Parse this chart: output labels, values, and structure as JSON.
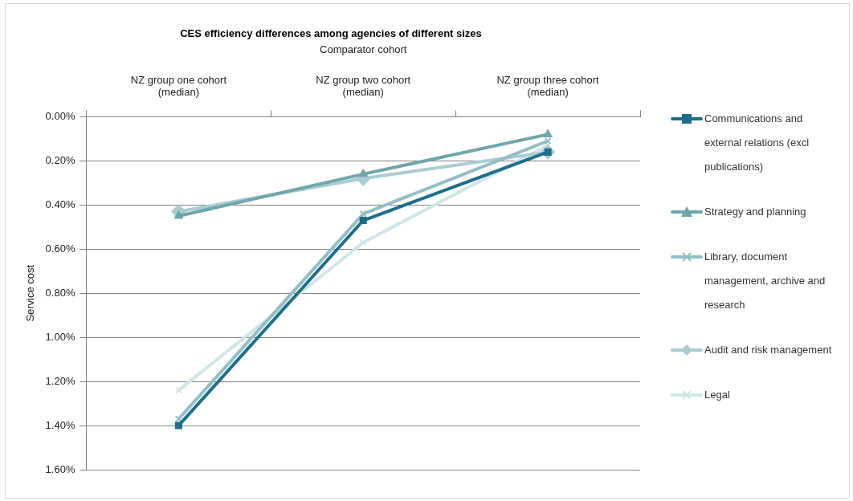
{
  "chart_data": {
    "type": "line",
    "title": "CES efficiency differences among agencies of different sizes",
    "xlabel": "Comparator cohort",
    "ylabel": "Service cost",
    "categories": [
      "NZ group one cohort (median)",
      "NZ group two cohort (median)",
      "NZ group three cohort (median)"
    ],
    "series": [
      {
        "name": "Communications and external relations (excl publications)",
        "color": "#1f6e87",
        "marker": "square",
        "values": [
          1.4,
          0.47,
          0.16
        ]
      },
      {
        "name": "Strategy and planning",
        "color": "#6fa5ab",
        "marker": "triangle",
        "values": [
          0.45,
          0.26,
          0.08
        ]
      },
      {
        "name": "Library, document management, archive and research",
        "color": "#93bfc4",
        "marker": "cross",
        "values": [
          1.37,
          0.44,
          0.11
        ]
      },
      {
        "name": "Audit and risk management",
        "color": "#a9cdd2",
        "marker": "diamond",
        "values": [
          0.43,
          0.28,
          0.16
        ]
      },
      {
        "name": "Legal",
        "color": "#d0e5e8",
        "marker": "cross",
        "values": [
          1.24,
          0.57,
          0.13
        ]
      }
    ],
    "ylim": [
      1.6,
      0
    ],
    "yticks": [
      {
        "value": 0,
        "label": "0.00%"
      },
      {
        "value": 0.2,
        "label": "0.20%"
      },
      {
        "value": 0.4,
        "label": "0.40%"
      },
      {
        "value": 0.6,
        "label": "0.60%"
      },
      {
        "value": 0.8,
        "label": "0.80%"
      },
      {
        "value": 1.0,
        "label": "1.00%"
      },
      {
        "value": 1.2,
        "label": "1.20%"
      },
      {
        "value": 1.4,
        "label": "1.40%"
      },
      {
        "value": 1.6,
        "label": "1.60%"
      }
    ],
    "grid": "y",
    "legend": "right",
    "line_style": "solid"
  }
}
